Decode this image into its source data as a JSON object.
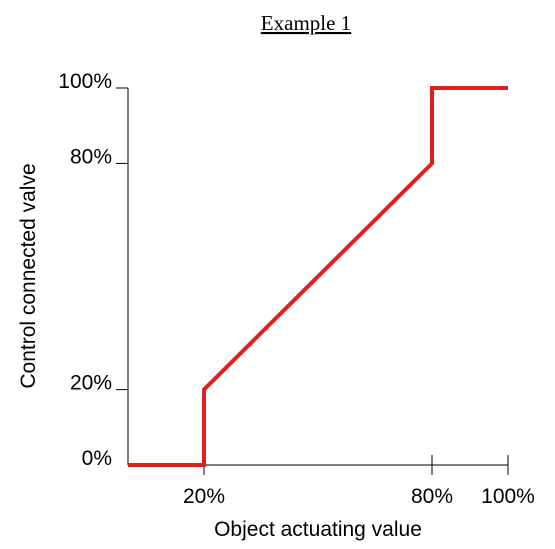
{
  "chart_data": {
    "type": "line",
    "title": "Example 1",
    "xlabel": "Object actuating value",
    "ylabel": "Control connected valve",
    "xlim": [
      0,
      100
    ],
    "ylim": [
      0,
      100
    ],
    "x_ticks": [
      {
        "value": 20,
        "label": "20%"
      },
      {
        "value": 80,
        "label": "80%"
      },
      {
        "value": 100,
        "label": "100%"
      }
    ],
    "y_ticks": [
      {
        "value": 0,
        "label": "0%"
      },
      {
        "value": 20,
        "label": "20%"
      },
      {
        "value": 80,
        "label": "80%"
      },
      {
        "value": 100,
        "label": "100%"
      }
    ],
    "grid": false,
    "legend": "none",
    "series": [
      {
        "color": "#e02020",
        "points": [
          {
            "x": 0,
            "y": 0
          },
          {
            "x": 20,
            "y": 0
          },
          {
            "x": 20,
            "y": 20
          },
          {
            "x": 80,
            "y": 80
          },
          {
            "x": 80,
            "y": 100
          },
          {
            "x": 100,
            "y": 100
          }
        ]
      }
    ]
  }
}
